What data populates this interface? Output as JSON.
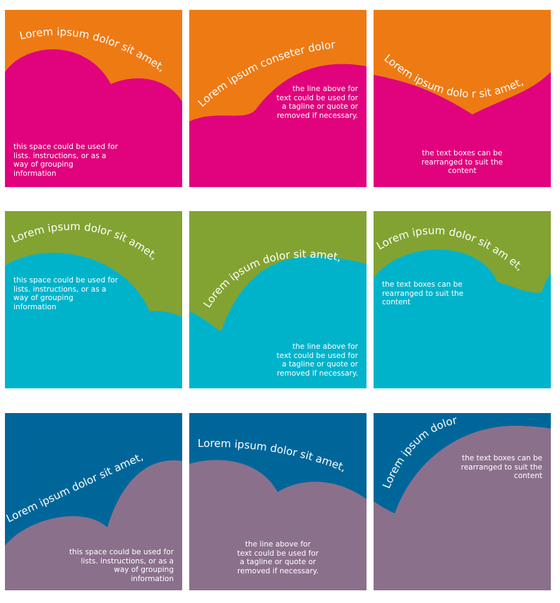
{
  "colors": {
    "orange": "#EE7A14",
    "magenta": "#E0037D",
    "green": "#82A332",
    "cyan": "#00B3CB",
    "navy": "#00669A",
    "mauve": "#8B708C",
    "text": "#FFFFFF"
  },
  "rows": [
    {
      "top_color": "orange",
      "bottom_color": "magenta",
      "tiles": [
        {
          "headline": "Lorem ipsum dolor sit amet,",
          "caption": "this space could be used for\nlists. instructions, or as a\nway of grouping\ninformation"
        },
        {
          "headline": "Lorem ipsum conseter dolor",
          "caption": "the line above for\ntext could be used for\na tagline or quote or\nremoved if necessary."
        },
        {
          "headline": "Lorem ipsum dolo r sit amet,",
          "caption": "the text boxes can be\nrearranged to suit the\ncontent"
        }
      ]
    },
    {
      "top_color": "green",
      "bottom_color": "cyan",
      "tiles": [
        {
          "headline": "Lorem ipsum dolor sit amet,",
          "caption": "this space could be used for\nlists. instructions, or as a\nway of grouping\ninformation"
        },
        {
          "headline": "Lorem ipsum dolor sit amet,",
          "caption": "the line above for\ntext could be used for\na tagline or quote or\nremoved if necessary."
        },
        {
          "headline": "Lorem ipsum dolor sit am et,",
          "caption": "the text boxes can be\nrearranged to suit the\ncontent"
        }
      ]
    },
    {
      "top_color": "navy",
      "bottom_color": "mauve",
      "tiles": [
        {
          "headline": "Lorem ipsum dolor sit amet,",
          "caption": "this space could be used for\nlists. instructions, or as a\nway of grouping\ninformation"
        },
        {
          "headline": "Lorem ipsum dolor sit amet,",
          "caption": "the line above for\ntext could be used for\na tagline or quote or\nremoved if necessary."
        },
        {
          "headline": "Lorem ipsum dolor",
          "caption": "the text boxes can be\nrearranged to suit the\ncontent"
        }
      ]
    }
  ]
}
